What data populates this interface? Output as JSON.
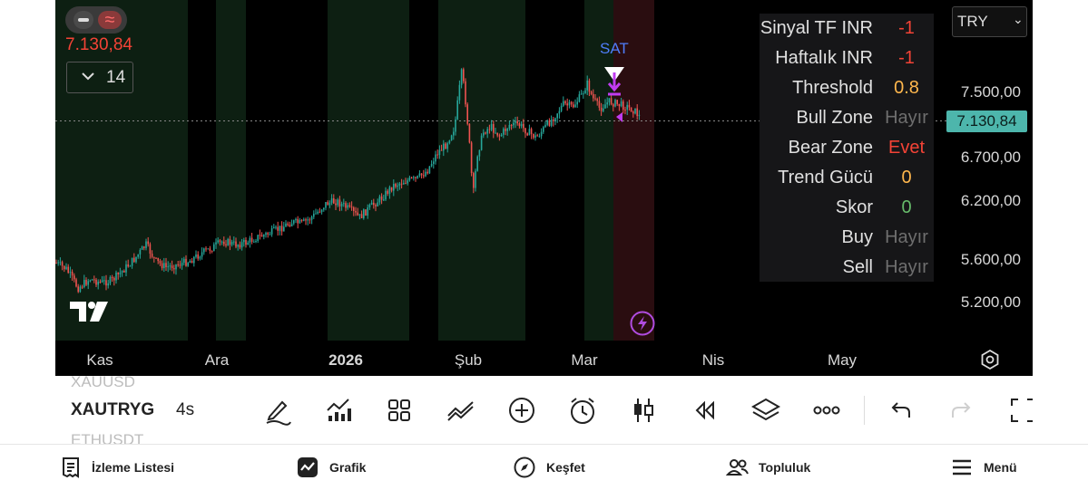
{
  "chart": {
    "last_price": "7.130,84",
    "bars_count": "14",
    "signal_label": "SAT",
    "currency": "TRY",
    "price_axis": [
      "7.500,00",
      "6.700,00",
      "6.200,00",
      "5.600,00",
      "5.200,00"
    ],
    "current_price_tag": "7.130,84",
    "time_axis": [
      {
        "label": "Kas",
        "bold": false
      },
      {
        "label": "Ara",
        "bold": false
      },
      {
        "label": "2026",
        "bold": true
      },
      {
        "label": "Şub",
        "bold": false
      },
      {
        "label": "Mar",
        "bold": false
      },
      {
        "label": "Nis",
        "bold": false
      },
      {
        "label": "May",
        "bold": false
      }
    ],
    "colors": {
      "up": "#26a69a",
      "down": "#ef5350",
      "bull_zone": "#0d1f12",
      "bear_zone": "#2a0d10",
      "signal": "#4f7df9",
      "marker": "#c03cf0"
    }
  },
  "info_table": {
    "rows": [
      {
        "label": "Sinyal TF INR",
        "value": "-1",
        "color": "#f44336"
      },
      {
        "label": "Haftalık INR",
        "value": "-1",
        "color": "#f44336"
      },
      {
        "label": "Threshold",
        "value": "0.8",
        "color": "#ffb74d"
      },
      {
        "label": "Bull Zone",
        "value": "Hayır",
        "color": "#6e6e6e"
      },
      {
        "label": "Bear Zone",
        "value": "Evet",
        "color": "#f44336"
      },
      {
        "label": "Trend Gücü",
        "value": "0",
        "color": "#ffb74d"
      },
      {
        "label": "Skor",
        "value": "0",
        "color": "#66bb6a"
      },
      {
        "label": "Buy",
        "value": "Hayır",
        "color": "#6e6e6e"
      },
      {
        "label": "Sell",
        "value": "Hayır",
        "color": "#6e6e6e"
      }
    ]
  },
  "toolbar": {
    "symbol_prev": "XAUUSD",
    "symbol": "XAUTRYG",
    "symbol_next": "ETHUSDT",
    "interval": "4s",
    "tools": [
      "draw-pen-icon",
      "indicators-icon",
      "templates-grid-icon",
      "compare-icon",
      "add-icon",
      "alert-clock-icon",
      "candles-icon",
      "replay-icon",
      "layers-icon",
      "more-icon",
      "undo-icon",
      "redo-icon",
      "fullscreen-icon"
    ]
  },
  "bottom_nav": [
    {
      "label": "İzleme Listesi",
      "icon": "watchlist-icon"
    },
    {
      "label": "Grafik",
      "icon": "chart-icon"
    },
    {
      "label": "Keşfet",
      "icon": "compass-icon"
    },
    {
      "label": "Topluluk",
      "icon": "community-icon"
    },
    {
      "label": "Menü",
      "icon": "menu-icon"
    }
  ]
}
